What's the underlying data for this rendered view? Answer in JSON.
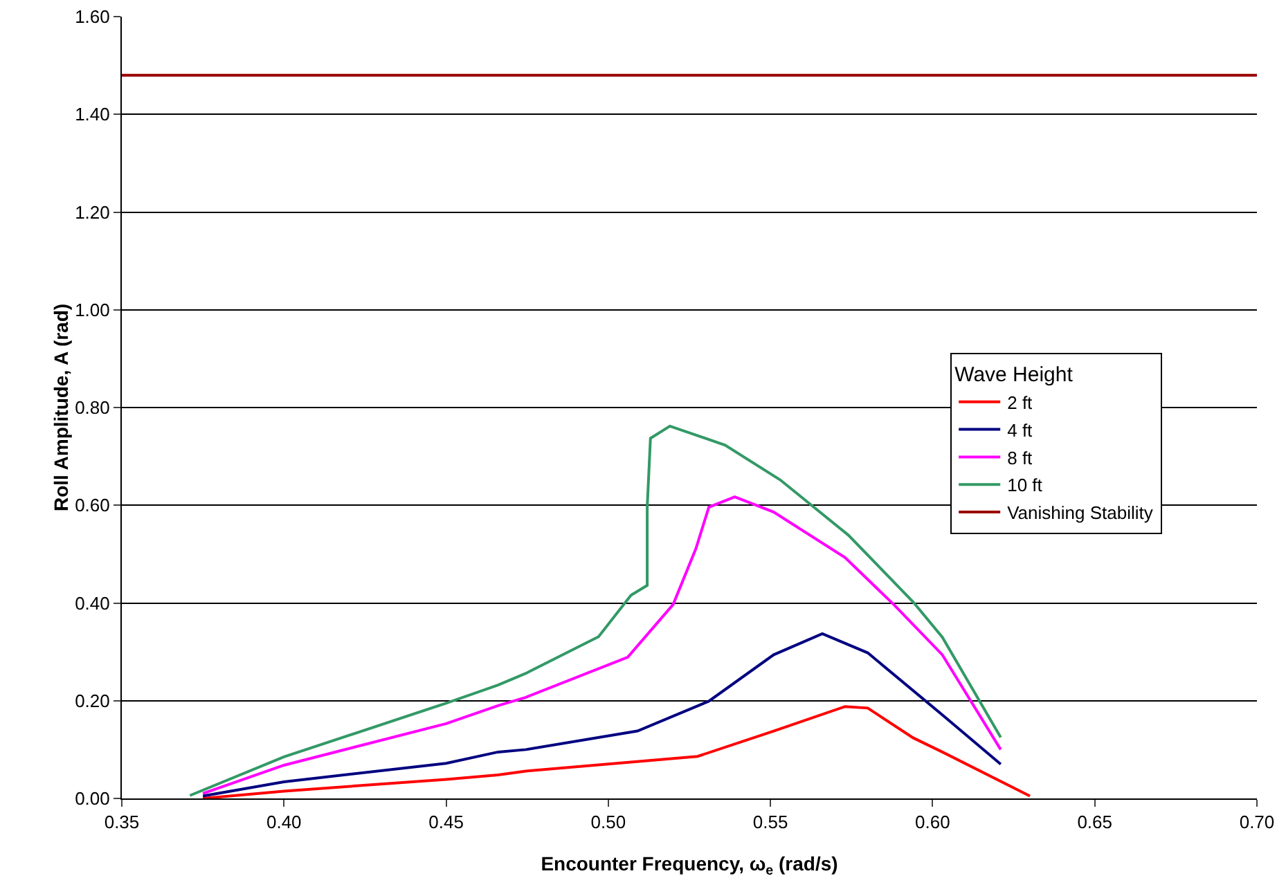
{
  "chart_data": {
    "type": "line",
    "xlabel": "Encounter Frequency, ω$_{e}$ (rad/s)",
    "ylabel": "Roll Amplitude, A (rad)",
    "legend_title": "Wave Height",
    "legend": "right",
    "grid": "y",
    "marker": "none",
    "line_style": "solid",
    "xlim": [
      0.35,
      0.7
    ],
    "xticks": [
      {
        "value": 0.35,
        "label": "0.35"
      },
      {
        "value": 0.4,
        "label": "0.40"
      },
      {
        "value": 0.45,
        "label": "0.45"
      },
      {
        "value": 0.5,
        "label": "0.50"
      },
      {
        "value": 0.55,
        "label": "0.55"
      },
      {
        "value": 0.6,
        "label": "0.60"
      },
      {
        "value": 0.65,
        "label": "0.65"
      },
      {
        "value": 0.7,
        "label": "0.70"
      }
    ],
    "ylim": [
      0,
      1.6
    ],
    "yticks": [
      {
        "value": 0,
        "label": "0.00"
      },
      {
        "value": 0.2,
        "label": "0.20"
      },
      {
        "value": 0.4,
        "label": "0.40"
      },
      {
        "value": 0.6,
        "label": "0.60"
      },
      {
        "value": 0.8,
        "label": "0.80"
      },
      {
        "value": 1,
        "label": "1.00"
      },
      {
        "value": 1.2,
        "label": "1.20"
      },
      {
        "value": 1.4,
        "label": "1.40"
      },
      {
        "value": 1.6,
        "label": "1.60"
      }
    ],
    "series": [
      {
        "name": "2 ft",
        "color": "#ff0000",
        "x": [
          0.375,
          0.4,
          0.45,
          0.466,
          0.4746,
          0.5275,
          0.551,
          0.573,
          0.58,
          0.594,
          0.603,
          0.63
        ],
        "values": [
          0.0,
          0.015,
          0.039,
          0.048,
          0.056,
          0.086,
          0.138,
          0.188,
          0.185,
          0.124,
          0.095,
          0.005
        ]
      },
      {
        "name": "4 ft",
        "color": "#000080",
        "x": [
          0.375,
          0.4,
          0.45,
          0.466,
          0.4746,
          0.509,
          0.531,
          0.551,
          0.566,
          0.58,
          0.603,
          0.621
        ],
        "values": [
          0.005,
          0.034,
          0.072,
          0.095,
          0.1,
          0.138,
          0.199,
          0.294,
          0.337,
          0.298,
          0.171,
          0.07
        ]
      },
      {
        "name": "8 ft",
        "color": "#ff00ff",
        "x": [
          0.375,
          0.4,
          0.45,
          0.466,
          0.4746,
          0.506,
          0.52,
          0.527,
          0.531,
          0.539,
          0.551,
          0.573,
          0.588,
          0.603,
          0.621
        ],
        "values": [
          0.01,
          0.068,
          0.153,
          0.19,
          0.207,
          0.289,
          0.397,
          0.511,
          0.596,
          0.617,
          0.586,
          0.493,
          0.397,
          0.294,
          0.1
        ]
      },
      {
        "name": "10 ft",
        "color": "#339966",
        "x": [
          0.371,
          0.4,
          0.45,
          0.466,
          0.4746,
          0.497,
          0.507,
          0.512,
          0.512,
          0.513,
          0.519,
          0.536,
          0.553,
          0.574,
          0.594,
          0.603,
          0.621
        ],
        "values": [
          0.006,
          0.085,
          0.195,
          0.232,
          0.256,
          0.331,
          0.416,
          0.436,
          0.596,
          0.737,
          0.762,
          0.723,
          0.652,
          0.539,
          0.402,
          0.33,
          0.125
        ]
      },
      {
        "name": "Vanishing Stability",
        "color": "#990000",
        "x": [
          0.35,
          0.7
        ],
        "values": [
          1.48,
          1.48
        ]
      }
    ]
  }
}
